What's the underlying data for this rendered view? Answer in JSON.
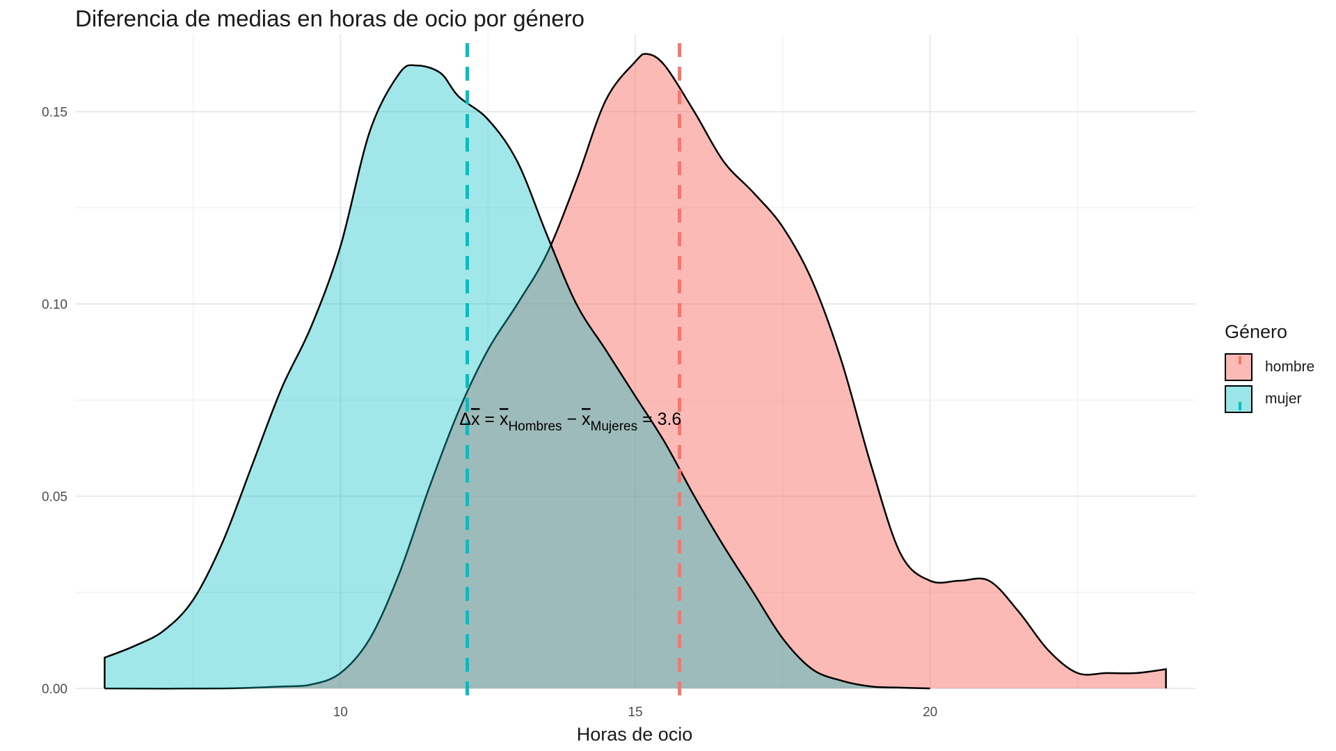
{
  "chart_data": {
    "type": "area",
    "title": "Diferencia de medias en horas de ocio por género",
    "xlabel": "Horas de ocio",
    "ylabel": "",
    "xlim": [
      5.5,
      24.5
    ],
    "ylim": [
      0,
      0.17
    ],
    "x_ticks": [
      10,
      15,
      20
    ],
    "y_ticks": [
      0.0,
      0.05,
      0.1,
      0.15
    ],
    "y_tick_labels": [
      "0.00",
      "0.05",
      "0.10",
      "0.15"
    ],
    "grid": true,
    "legend": {
      "title": "Género",
      "placement": "right"
    },
    "series": [
      {
        "name": "hombre",
        "color": "#F8766D",
        "mean": 15.75,
        "x": [
          6.0,
          8.0,
          9.0,
          9.5,
          10.0,
          10.5,
          11.0,
          11.5,
          12.0,
          12.5,
          13.0,
          13.5,
          14.0,
          14.5,
          15.0,
          15.2,
          15.5,
          16.0,
          16.5,
          17.0,
          17.5,
          18.0,
          18.5,
          19.0,
          19.5,
          20.0,
          20.5,
          21.0,
          21.5,
          22.0,
          22.5,
          23.0,
          23.5,
          24.0
        ],
        "y": [
          0.0,
          0.0,
          0.0005,
          0.001,
          0.004,
          0.013,
          0.03,
          0.052,
          0.072,
          0.088,
          0.1,
          0.113,
          0.132,
          0.153,
          0.163,
          0.165,
          0.162,
          0.15,
          0.137,
          0.129,
          0.12,
          0.106,
          0.085,
          0.058,
          0.035,
          0.028,
          0.028,
          0.028,
          0.02,
          0.01,
          0.004,
          0.004,
          0.004,
          0.005
        ]
      },
      {
        "name": "mujer",
        "color": "#00BFC4",
        "mean": 12.15,
        "x": [
          6.0,
          6.5,
          7.0,
          7.5,
          8.0,
          8.5,
          9.0,
          9.5,
          10.0,
          10.5,
          11.0,
          11.3,
          11.7,
          12.0,
          12.5,
          13.0,
          13.5,
          14.0,
          14.5,
          15.0,
          15.5,
          16.0,
          16.5,
          17.0,
          17.5,
          18.0,
          18.5,
          19.0,
          19.5,
          20.0
        ],
        "y": [
          0.008,
          0.011,
          0.015,
          0.023,
          0.038,
          0.058,
          0.078,
          0.094,
          0.115,
          0.145,
          0.16,
          0.162,
          0.16,
          0.154,
          0.148,
          0.137,
          0.118,
          0.1,
          0.088,
          0.076,
          0.064,
          0.05,
          0.037,
          0.025,
          0.013,
          0.005,
          0.002,
          0.0005,
          0.0002,
          0.0
        ]
      }
    ],
    "annotation": {
      "text": "Δx̄ = x̄Hombres − x̄Mujeres = 3.6",
      "delta": "Δ",
      "xbar": "x",
      "equals": " = ",
      "sub_hombres": "Hombres",
      "minus": " − ",
      "sub_mujeres": "Mujeres",
      "result": " = 3.6",
      "x": 13.9,
      "y": 0.07
    }
  }
}
